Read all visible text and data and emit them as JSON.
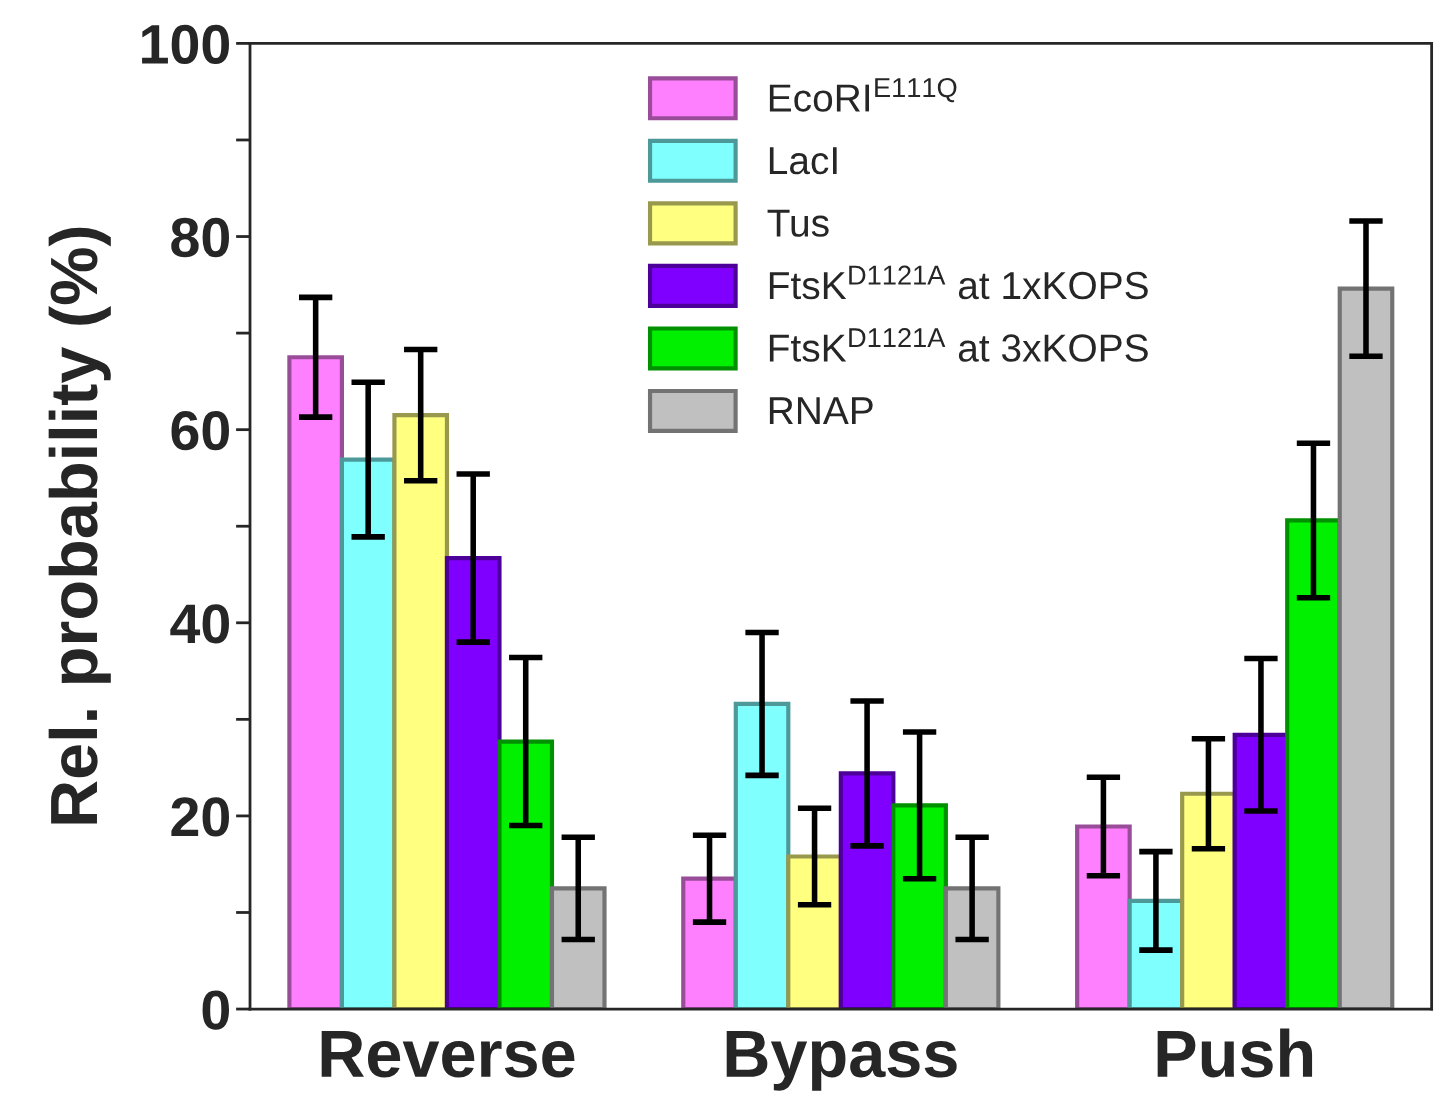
{
  "chart_data": {
    "type": "bar",
    "ylabel": "Rel. probability (%)",
    "categories": [
      "Reverse",
      "Bypass",
      "Push"
    ],
    "ylim": [
      0,
      100
    ],
    "yticks": [
      0,
      {
        "value": 10,
        "label": null
      },
      20,
      {
        "value": 30,
        "label": null
      },
      40,
      {
        "value": 50,
        "label": null
      },
      60,
      {
        "value": 70,
        "label": null
      },
      80,
      {
        "value": 90,
        "label": null
      },
      100
    ],
    "grid": false,
    "legend": "top",
    "series": [
      {
        "name": "EcoRI$^{E111Q}$",
        "color": "#ff80ff",
        "values": [
          67.5,
          13.5,
          18.9
        ],
        "errors": [
          6.2,
          4.5,
          5.1
        ]
      },
      {
        "name": "LacI",
        "color": "#80ffff",
        "values": [
          56.9,
          31.6,
          11.2
        ],
        "errors": [
          8,
          7.4,
          5.1
        ]
      },
      {
        "name": "Tus",
        "color": "#ffff80",
        "values": [
          61.5,
          15.8,
          22.3
        ],
        "errors": [
          6.8,
          5,
          5.7
        ]
      },
      {
        "name": "FtsK$^{D1121A}$ at 1xKOPS",
        "color": "#8000ff",
        "values": [
          46.7,
          24.4,
          28.4
        ],
        "errors": [
          8.7,
          7.5,
          7.9
        ]
      },
      {
        "name": "FtsK$^{D1121A}$ at 3xKOPS",
        "color": "#00f000",
        "values": [
          27.7,
          21.1,
          50.6
        ],
        "errors": [
          8.7,
          7.6,
          8
        ]
      },
      {
        "name": "RNAP",
        "color": "#c0c0c0",
        "values": [
          12.5,
          12.5,
          74.6
        ],
        "errors": [
          5.3,
          5.3,
          7
        ]
      }
    ]
  }
}
